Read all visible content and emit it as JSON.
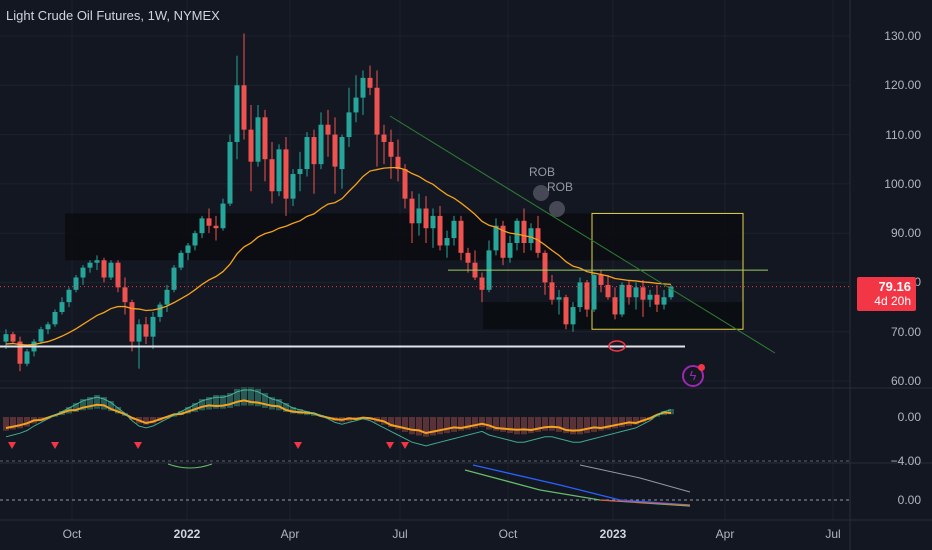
{
  "header": {
    "title": "Light Crude Oil Futures, 1W, NYMEX"
  },
  "last_price": {
    "value": "79.16",
    "countdown": "4d 20h"
  },
  "price_axis": {
    "labels": [
      "130.00",
      "120.00",
      "110.00",
      "100.00",
      "90.00",
      "80.00",
      "70.00",
      "60.00"
    ]
  },
  "osc1_axis": {
    "labels": [
      "0.00",
      "−4.00"
    ]
  },
  "osc2_axis": {
    "labels": [
      "0.00"
    ]
  },
  "time_axis": {
    "labels": [
      "Oct",
      "2022",
      "Apr",
      "Jul",
      "Oct",
      "2023",
      "Apr",
      "Jul"
    ],
    "bold": [
      false,
      true,
      false,
      false,
      false,
      true,
      false,
      false
    ]
  },
  "annotations": {
    "rob1": "ROB",
    "rob2": "ROB"
  },
  "colors": {
    "up": "#26a69a",
    "down": "#ef5350",
    "ma": "#f7a21b",
    "box_yellow": "#e6d44a",
    "background": "#131722"
  },
  "chart_data": {
    "type": "candlestick",
    "title": "Light Crude Oil Futures, 1W, NYMEX",
    "ylim": [
      57,
      136
    ],
    "candles": [
      [
        68.0,
        70.5,
        66.5,
        69.5
      ],
      [
        69.5,
        70.0,
        67.5,
        68.0
      ],
      [
        68.0,
        69.0,
        62.0,
        63.5
      ],
      [
        63.5,
        66.5,
        63.0,
        66.0
      ],
      [
        66.0,
        68.5,
        65.0,
        68.0
      ],
      [
        68.0,
        71.0,
        67.5,
        70.5
      ],
      [
        70.5,
        72.0,
        69.5,
        71.5
      ],
      [
        71.5,
        74.5,
        71.0,
        74.0
      ],
      [
        74.0,
        77.0,
        73.5,
        76.0
      ],
      [
        76.0,
        79.0,
        75.0,
        78.5
      ],
      [
        78.5,
        81.5,
        78.0,
        81.0
      ],
      [
        81.0,
        83.5,
        79.5,
        83.0
      ],
      [
        83.0,
        84.5,
        82.0,
        84.0
      ],
      [
        84.0,
        85.5,
        82.5,
        84.5
      ],
      [
        84.5,
        85.0,
        80.0,
        81.0
      ],
      [
        81.0,
        84.5,
        80.5,
        84.0
      ],
      [
        84.0,
        84.5,
        78.0,
        79.0
      ],
      [
        79.0,
        81.0,
        73.5,
        76.0
      ],
      [
        76.0,
        76.5,
        66.0,
        68.0
      ],
      [
        68.0,
        72.5,
        62.5,
        71.5
      ],
      [
        71.5,
        73.0,
        67.5,
        69.0
      ],
      [
        69.0,
        74.0,
        66.5,
        73.0
      ],
      [
        73.0,
        76.0,
        72.0,
        75.5
      ],
      [
        75.5,
        79.5,
        74.0,
        78.5
      ],
      [
        78.5,
        83.5,
        78.0,
        83.0
      ],
      [
        83.0,
        86.5,
        82.5,
        86.0
      ],
      [
        86.0,
        88.0,
        84.5,
        87.5
      ],
      [
        87.5,
        90.5,
        86.5,
        90.0
      ],
      [
        90.0,
        93.5,
        89.0,
        93.0
      ],
      [
        93.0,
        95.0,
        90.0,
        91.5
      ],
      [
        91.5,
        93.5,
        88.5,
        91.0
      ],
      [
        91.0,
        97.0,
        90.5,
        96.0
      ],
      [
        96.0,
        110.0,
        95.5,
        108.5
      ],
      [
        108.5,
        126.0,
        105.0,
        120.0
      ],
      [
        120.0,
        130.5,
        109.0,
        111.0
      ],
      [
        111.0,
        116.0,
        98.5,
        104.5
      ],
      [
        104.5,
        116.0,
        103.5,
        113.5
      ],
      [
        113.5,
        115.0,
        100.5,
        105.0
      ],
      [
        105.0,
        108.5,
        96.0,
        98.5
      ],
      [
        98.5,
        108.0,
        97.5,
        107.0
      ],
      [
        107.0,
        109.5,
        93.5,
        97.0
      ],
      [
        97.0,
        103.0,
        95.5,
        102.0
      ],
      [
        102.0,
        106.5,
        98.5,
        103.0
      ],
      [
        103.0,
        110.5,
        101.5,
        109.5
      ],
      [
        109.5,
        111.0,
        98.0,
        104.0
      ],
      [
        104.0,
        114.5,
        103.0,
        112.0
      ],
      [
        112.0,
        115.0,
        105.5,
        110.0
      ],
      [
        110.0,
        113.5,
        98.0,
        103.5
      ],
      [
        103.0,
        110.0,
        99.0,
        109.5
      ],
      [
        109.5,
        119.5,
        107.5,
        114.5
      ],
      [
        114.5,
        122.0,
        112.5,
        117.5
      ],
      [
        117.5,
        123.0,
        114.0,
        121.5
      ],
      [
        121.5,
        124.0,
        118.0,
        119.5
      ],
      [
        119.5,
        123.0,
        103.5,
        110.0
      ],
      [
        110.0,
        112.0,
        104.0,
        108.5
      ],
      [
        108.5,
        111.0,
        101.0,
        105.5
      ],
      [
        105.5,
        109.0,
        100.5,
        103.0
      ],
      [
        103.0,
        104.0,
        95.0,
        97.0
      ],
      [
        97.0,
        98.5,
        88.0,
        92.0
      ],
      [
        92.0,
        98.0,
        89.5,
        95.0
      ],
      [
        95.0,
        97.5,
        88.0,
        91.0
      ],
      [
        91.0,
        95.0,
        87.0,
        93.5
      ],
      [
        93.5,
        95.5,
        86.5,
        87.5
      ],
      [
        87.5,
        90.5,
        85.0,
        89.0
      ],
      [
        89.0,
        93.5,
        87.5,
        92.5
      ],
      [
        92.5,
        93.5,
        84.5,
        86.0
      ],
      [
        86.0,
        87.0,
        82.0,
        84.0
      ],
      [
        84.0,
        86.5,
        80.5,
        81.0
      ],
      [
        81.0,
        82.0,
        76.0,
        78.5
      ],
      [
        78.5,
        88.5,
        78.0,
        86.5
      ],
      [
        86.5,
        93.0,
        85.5,
        91.5
      ],
      [
        91.5,
        92.5,
        83.5,
        85.0
      ],
      [
        85.0,
        89.5,
        84.0,
        88.0
      ],
      [
        88.0,
        93.0,
        86.5,
        92.5
      ],
      [
        92.5,
        95.0,
        86.0,
        88.0
      ],
      [
        88.0,
        92.0,
        86.5,
        91.0
      ],
      [
        91.0,
        93.5,
        85.0,
        86.0
      ],
      [
        86.0,
        86.5,
        77.5,
        80.0
      ],
      [
        80.0,
        81.5,
        75.5,
        76.5
      ],
      [
        76.5,
        78.5,
        73.5,
        77.0
      ],
      [
        77.0,
        77.5,
        70.5,
        71.5
      ],
      [
        71.5,
        76.0,
        70.0,
        75.0
      ],
      [
        75.0,
        81.0,
        74.0,
        80.0
      ],
      [
        80.0,
        80.5,
        73.0,
        74.5
      ],
      [
        74.5,
        82.0,
        74.0,
        81.5
      ],
      [
        81.5,
        82.5,
        78.0,
        79.5
      ],
      [
        79.5,
        81.5,
        76.5,
        77.0
      ],
      [
        77.0,
        79.0,
        72.5,
        73.5
      ],
      [
        73.5,
        80.0,
        73.0,
        79.5
      ],
      [
        79.5,
        80.5,
        75.5,
        77.0
      ],
      [
        77.0,
        80.0,
        74.5,
        79.0
      ],
      [
        79.0,
        80.5,
        73.0,
        76.5
      ],
      [
        76.5,
        78.5,
        75.0,
        77.5
      ],
      [
        77.5,
        79.5,
        74.0,
        75.5
      ],
      [
        75.5,
        78.5,
        74.5,
        77.0
      ],
      [
        77.0,
        79.5,
        76.5,
        79.16
      ]
    ],
    "ma": [
      67.5,
      67.6,
      67.4,
      67.3,
      67.4,
      67.7,
      68.0,
      68.5,
      69.1,
      69.8,
      70.6,
      71.5,
      72.4,
      73.3,
      73.9,
      74.7,
      75.1,
      75.1,
      74.7,
      74.6,
      74.3,
      74.4,
      74.7,
      75.2,
      75.9,
      76.7,
      77.5,
      78.5,
      79.6,
      80.5,
      81.2,
      82.2,
      83.7,
      85.8,
      87.2,
      88.0,
      89.2,
      89.9,
      90.3,
      91.0,
      91.4,
      92.0,
      92.5,
      93.4,
      93.9,
      95.0,
      95.9,
      96.2,
      97.0,
      98.5,
      99.9,
      101.5,
      102.6,
      102.9,
      103.2,
      103.3,
      103.3,
      102.9,
      102.1,
      101.5,
      100.6,
      99.9,
      98.8,
      97.8,
      97.1,
      96.1,
      95.0,
      93.8,
      92.4,
      91.6,
      91.2,
      90.5,
      90.0,
      89.8,
      89.5,
      89.2,
      88.6,
      87.6,
      86.5,
      85.5,
      84.2,
      83.3,
      82.9,
      82.2,
      81.9,
      81.6,
      81.3,
      80.8,
      80.6,
      80.4,
      80.3,
      80.1,
      80.0,
      79.8,
      79.7,
      79.6
    ],
    "zones": [
      {
        "label": "resistance zone",
        "y_from": 84.5,
        "y_to": 94.0
      },
      {
        "label": "support zone",
        "y_from": 70.5,
        "y_to": 76.0
      },
      {
        "label": "range box",
        "y_from": 70.5,
        "y_to": 94.0
      }
    ],
    "horizontal_lines": [
      {
        "label": "support line",
        "y": 67.0
      },
      {
        "label": "level line",
        "y": 82.5
      }
    ],
    "x_ticks": [
      "Oct",
      "2022",
      "Apr",
      "Jul",
      "Oct",
      "2023",
      "Apr",
      "Jul"
    ],
    "y_ticks": [
      130,
      120,
      110,
      100,
      90,
      80,
      70,
      60
    ],
    "oscillator_1": {
      "ylim": [
        -6,
        2
      ],
      "ticks": [
        0,
        -4
      ]
    },
    "oscillator_2": {
      "ylim": [
        -1,
        1
      ],
      "ticks": [
        0
      ]
    }
  }
}
